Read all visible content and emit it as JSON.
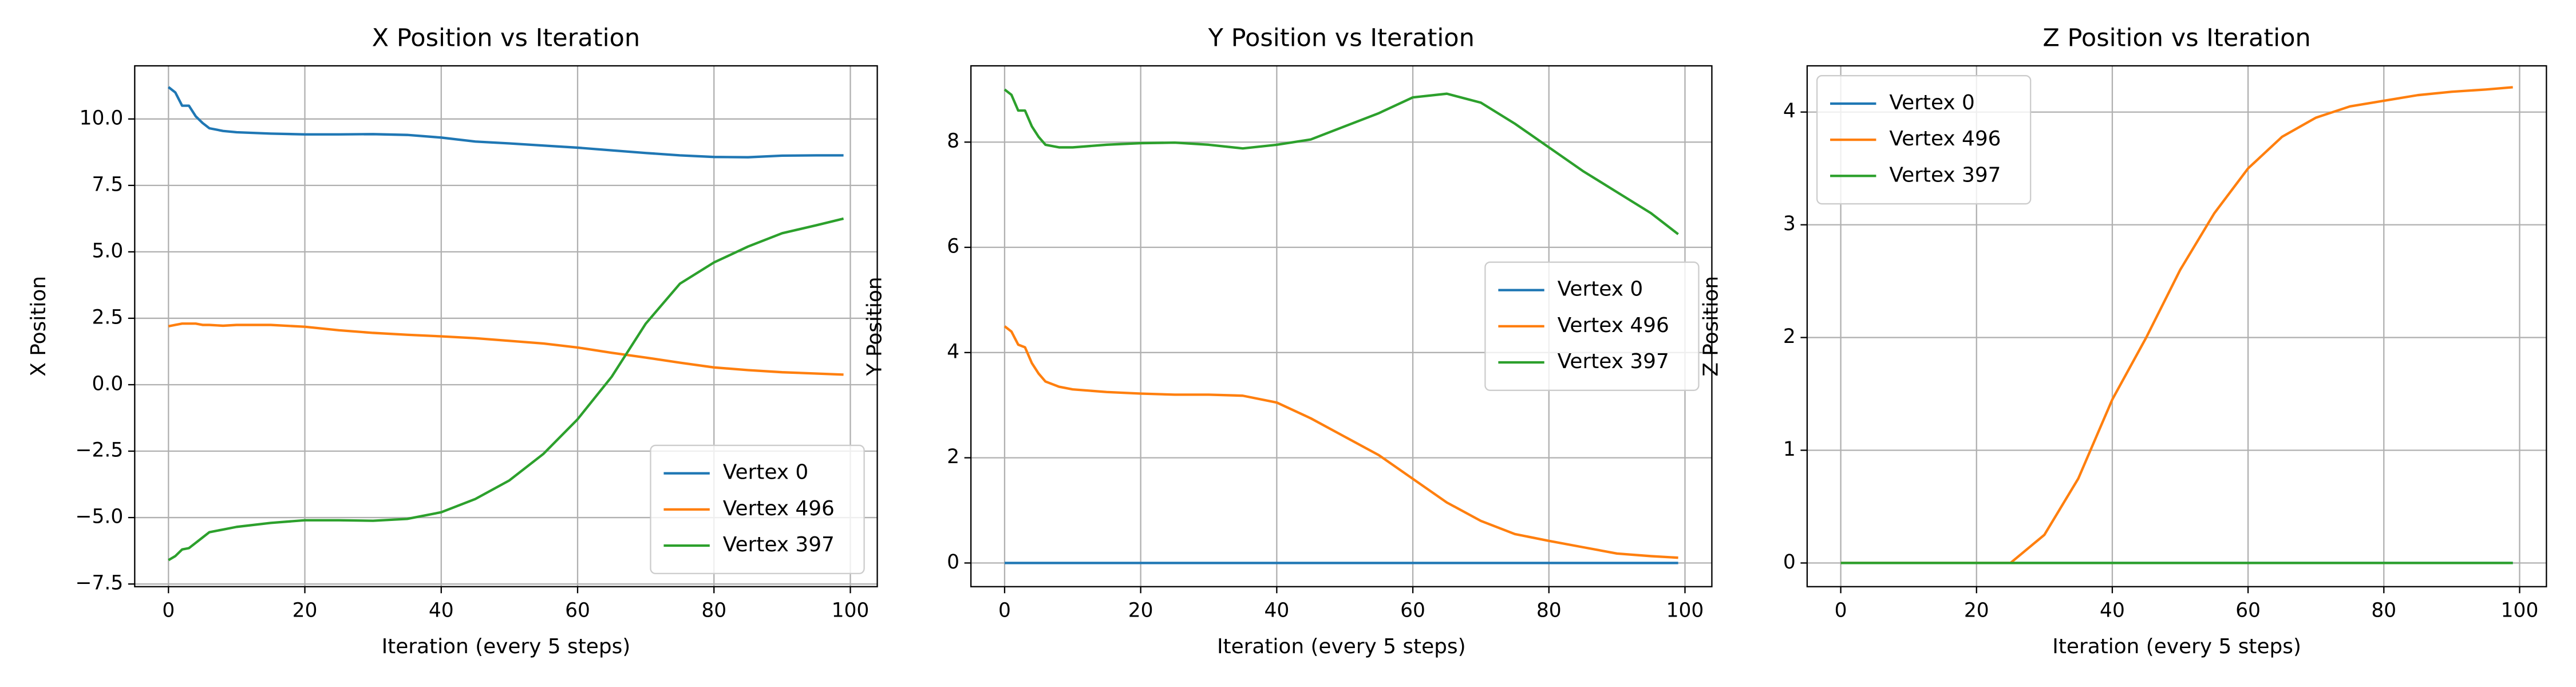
{
  "chart_data": [
    {
      "type": "line",
      "title": "X Position vs Iteration",
      "xlabel": "Iteration (every 5 steps)",
      "ylabel": "X Position",
      "x": [
        0,
        1,
        2,
        3,
        4,
        5,
        6,
        8,
        10,
        15,
        20,
        25,
        30,
        35,
        40,
        45,
        50,
        55,
        60,
        65,
        70,
        75,
        80,
        85,
        90,
        95,
        99
      ],
      "series": [
        {
          "name": "Vertex 0",
          "color": "#1f77b4",
          "values": [
            11.2,
            11.0,
            10.5,
            10.5,
            10.1,
            9.85,
            9.65,
            9.55,
            9.5,
            9.45,
            9.42,
            9.42,
            9.43,
            9.4,
            9.3,
            9.15,
            9.08,
            9.0,
            8.92,
            8.82,
            8.72,
            8.63,
            8.57,
            8.56,
            8.62,
            8.63,
            8.63
          ]
        },
        {
          "name": "Vertex 496",
          "color": "#ff7f0e",
          "values": [
            2.2,
            2.25,
            2.3,
            2.3,
            2.3,
            2.25,
            2.25,
            2.22,
            2.25,
            2.25,
            2.18,
            2.05,
            1.95,
            1.88,
            1.82,
            1.75,
            1.65,
            1.55,
            1.4,
            1.2,
            1.02,
            0.83,
            0.65,
            0.55,
            0.47,
            0.42,
            0.38
          ]
        },
        {
          "name": "Vertex 397",
          "color": "#2ca02c",
          "values": [
            -6.6,
            -6.45,
            -6.2,
            -6.15,
            -5.95,
            -5.75,
            -5.55,
            -5.45,
            -5.35,
            -5.2,
            -5.1,
            -5.1,
            -5.12,
            -5.05,
            -4.8,
            -4.3,
            -3.6,
            -2.6,
            -1.3,
            0.3,
            2.3,
            3.8,
            4.6,
            5.2,
            5.7,
            6.0,
            6.25
          ]
        }
      ],
      "xlim": [
        -4.95,
        103.95
      ],
      "ylim": [
        -7.6,
        12.0
      ],
      "xticks": [
        0,
        20,
        40,
        60,
        80,
        100
      ],
      "yticks": [
        {
          "value": -7.5,
          "label": "−7.5"
        },
        {
          "value": -5,
          "label": "−5.0"
        },
        {
          "value": -2.5,
          "label": "−2.5"
        },
        {
          "value": 0,
          "label": "0.0"
        },
        {
          "value": 2.5,
          "label": "2.5"
        },
        {
          "value": 5,
          "label": "5.0"
        },
        {
          "value": 7.5,
          "label": "7.5"
        },
        {
          "value": 10,
          "label": "10.0"
        }
      ],
      "grid": true,
      "legend": "lower-right"
    },
    {
      "type": "line",
      "title": "Y Position vs Iteration",
      "xlabel": "Iteration (every 5 steps)",
      "ylabel": "Y Position",
      "x": [
        0,
        1,
        2,
        3,
        4,
        5,
        6,
        8,
        10,
        15,
        20,
        25,
        30,
        35,
        40,
        45,
        50,
        55,
        60,
        65,
        70,
        75,
        80,
        85,
        90,
        95,
        99
      ],
      "series": [
        {
          "name": "Vertex 0",
          "color": "#1f77b4",
          "values": [
            0,
            0,
            0,
            0,
            0,
            0,
            0,
            0,
            0,
            0,
            0,
            0,
            0,
            0,
            0,
            0,
            0,
            0,
            0,
            0,
            0,
            0,
            0,
            0,
            0,
            0,
            0
          ]
        },
        {
          "name": "Vertex 496",
          "color": "#ff7f0e",
          "values": [
            4.5,
            4.4,
            4.15,
            4.1,
            3.8,
            3.6,
            3.45,
            3.35,
            3.3,
            3.25,
            3.22,
            3.2,
            3.2,
            3.18,
            3.05,
            2.75,
            2.4,
            2.05,
            1.6,
            1.15,
            0.8,
            0.55,
            0.42,
            0.3,
            0.18,
            0.13,
            0.1
          ]
        },
        {
          "name": "Vertex 397",
          "color": "#2ca02c",
          "values": [
            9.0,
            8.9,
            8.6,
            8.6,
            8.3,
            8.1,
            7.95,
            7.9,
            7.9,
            7.95,
            7.98,
            7.99,
            7.95,
            7.88,
            7.95,
            8.05,
            8.3,
            8.55,
            8.85,
            8.92,
            8.75,
            8.35,
            7.9,
            7.45,
            7.05,
            6.65,
            6.25
          ]
        }
      ],
      "xlim": [
        -4.95,
        103.95
      ],
      "ylim": [
        -0.45,
        9.45
      ],
      "xticks": [
        0,
        20,
        40,
        60,
        80,
        100
      ],
      "yticks": [
        0,
        2,
        4,
        6,
        8
      ],
      "grid": true,
      "legend": "center-right"
    },
    {
      "type": "line",
      "title": "Z Position vs Iteration",
      "xlabel": "Iteration (every 5 steps)",
      "ylabel": "Z Position",
      "x": [
        0,
        1,
        2,
        3,
        4,
        5,
        6,
        8,
        10,
        15,
        20,
        25,
        30,
        35,
        40,
        45,
        50,
        55,
        60,
        65,
        70,
        75,
        80,
        85,
        90,
        95,
        99
      ],
      "series": [
        {
          "name": "Vertex 0",
          "color": "#1f77b4",
          "values": [
            0,
            0,
            0,
            0,
            0,
            0,
            0,
            0,
            0,
            0,
            0,
            0,
            0,
            0,
            0,
            0,
            0,
            0,
            0,
            0,
            0,
            0,
            0,
            0,
            0,
            0,
            0
          ]
        },
        {
          "name": "Vertex 496",
          "color": "#ff7f0e",
          "values": [
            0,
            0,
            0,
            0,
            0,
            0,
            0,
            0,
            0,
            0,
            0,
            0,
            0.25,
            0.75,
            1.45,
            2.0,
            2.6,
            3.1,
            3.5,
            3.78,
            3.95,
            4.05,
            4.1,
            4.15,
            4.18,
            4.2,
            4.22
          ]
        },
        {
          "name": "Vertex 397",
          "color": "#2ca02c",
          "values": [
            0,
            0,
            0,
            0,
            0,
            0,
            0,
            0,
            0,
            0,
            0,
            0,
            0,
            0,
            0,
            0,
            0,
            0,
            0,
            0,
            0,
            0,
            0,
            0,
            0,
            0,
            0
          ]
        }
      ],
      "xlim": [
        -4.95,
        103.95
      ],
      "ylim": [
        -0.21,
        4.41
      ],
      "xticks": [
        0,
        20,
        40,
        60,
        80,
        100
      ],
      "yticks": [
        0,
        1,
        2,
        3,
        4
      ],
      "grid": true,
      "legend": "upper-left"
    }
  ]
}
